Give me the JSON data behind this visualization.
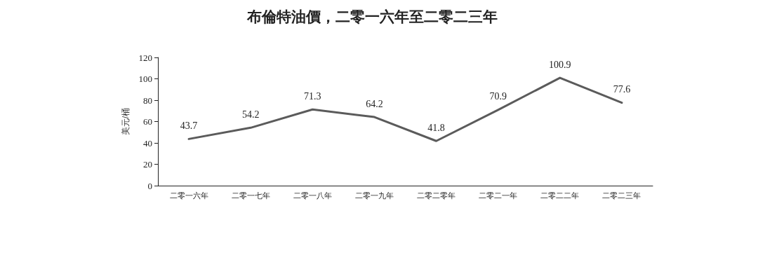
{
  "chart_data": {
    "type": "line",
    "title": "布倫特油價，二零一六年至二零二三年",
    "ylabel": "美元/桶",
    "categories": [
      "二零一六年",
      "二零一七年",
      "二零一八年",
      "二零一九年",
      "二零二零年",
      "二零二一年",
      "二零二二年",
      "二零二三年"
    ],
    "series": [
      {
        "color": "#5b5b5b",
        "values": [
          43.7,
          54.2,
          71.3,
          64.2,
          41.8,
          70.9,
          100.9,
          77.6
        ]
      }
    ],
    "ylim": [
      0,
      120
    ],
    "yticks": [
      0,
      20,
      40,
      60,
      80,
      100,
      120
    ],
    "grid": false,
    "marker": "none",
    "line_style": "solid",
    "data_labels": true
  }
}
